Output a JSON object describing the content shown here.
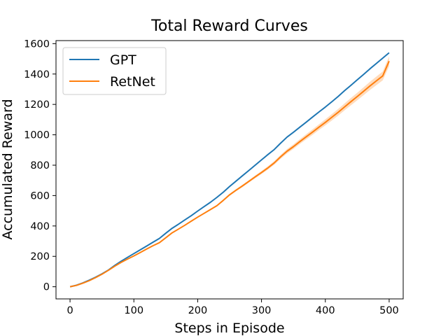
{
  "chart_data": {
    "type": "line",
    "title": "Total Reward Curves",
    "xlabel": "Steps in Episode",
    "ylabel": "Accumulated Reward",
    "xlim": [
      -22,
      522
    ],
    "ylim": [
      -80,
      1620
    ],
    "xticks": [
      0,
      100,
      200,
      300,
      400,
      500
    ],
    "yticks": [
      0,
      200,
      400,
      600,
      800,
      1000,
      1200,
      1400,
      1600
    ],
    "grid": false,
    "legend_position": "top-left",
    "series": [
      {
        "name": "GPT",
        "color": "#1f77b4",
        "x": [
          0,
          10,
          20,
          30,
          40,
          50,
          60,
          70,
          80,
          90,
          100,
          110,
          120,
          130,
          140,
          150,
          160,
          170,
          180,
          190,
          200,
          210,
          220,
          230,
          240,
          250,
          260,
          270,
          280,
          290,
          300,
          310,
          320,
          330,
          340,
          350,
          360,
          370,
          380,
          390,
          400,
          410,
          420,
          430,
          440,
          450,
          460,
          470,
          480,
          490,
          500
        ],
        "y": [
          0,
          10,
          25,
          43,
          63,
          85,
          110,
          140,
          168,
          193,
          218,
          243,
          268,
          293,
          318,
          352,
          385,
          412,
          440,
          468,
          498,
          527,
          556,
          588,
          622,
          660,
          695,
          730,
          765,
          800,
          835,
          870,
          903,
          945,
          985,
          1017,
          1050,
          1083,
          1117,
          1150,
          1183,
          1217,
          1252,
          1290,
          1325,
          1362,
          1398,
          1435,
          1470,
          1505,
          1540
        ]
      },
      {
        "name": "RetNet",
        "color": "#ff7f0e",
        "band_color": "#ffbf86",
        "x": [
          0,
          10,
          20,
          30,
          40,
          50,
          60,
          70,
          80,
          90,
          100,
          110,
          120,
          130,
          140,
          150,
          160,
          170,
          180,
          190,
          200,
          210,
          220,
          230,
          240,
          250,
          260,
          270,
          280,
          290,
          300,
          310,
          320,
          330,
          340,
          350,
          360,
          370,
          380,
          390,
          400,
          410,
          420,
          430,
          440,
          450,
          460,
          470,
          480,
          490,
          500
        ],
        "y": [
          0,
          9,
          23,
          40,
          60,
          82,
          108,
          135,
          160,
          182,
          203,
          225,
          248,
          270,
          290,
          322,
          355,
          380,
          405,
          432,
          458,
          483,
          508,
          533,
          568,
          605,
          635,
          663,
          693,
          723,
          752,
          782,
          815,
          855,
          892,
          922,
          955,
          987,
          1018,
          1050,
          1082,
          1115,
          1148,
          1183,
          1218,
          1252,
          1287,
          1322,
          1355,
          1388,
          1485
        ],
        "lower": [
          0,
          9,
          23,
          40,
          60,
          82,
          107,
          134,
          159,
          181,
          202,
          224,
          247,
          269,
          289,
          320,
          352,
          377,
          402,
          428,
          454,
          479,
          503,
          528,
          562,
          598,
          628,
          655,
          685,
          714,
          742,
          771,
          803,
          842,
          878,
          907,
          939,
          970,
          1000,
          1031,
          1062,
          1094,
          1126,
          1160,
          1194,
          1227,
          1261,
          1295,
          1327,
          1359,
          1452
        ],
        "upper": [
          0,
          9,
          23,
          40,
          60,
          82,
          109,
          136,
          161,
          183,
          204,
          226,
          249,
          271,
          291,
          324,
          358,
          383,
          408,
          436,
          462,
          487,
          513,
          538,
          574,
          612,
          642,
          671,
          701,
          732,
          762,
          793,
          827,
          868,
          906,
          937,
          971,
          1004,
          1036,
          1069,
          1102,
          1136,
          1170,
          1206,
          1242,
          1277,
          1313,
          1349,
          1383,
          1417,
          1515
        ]
      }
    ]
  }
}
